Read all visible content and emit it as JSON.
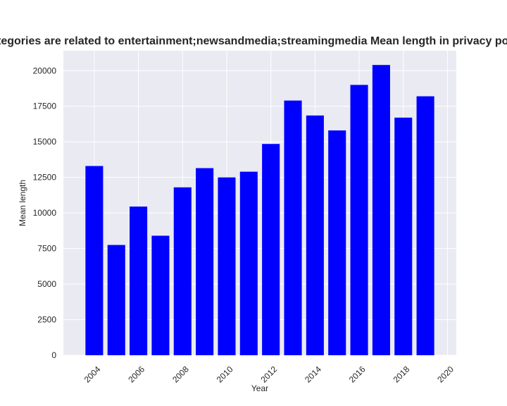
{
  "chart_data": {
    "type": "bar",
    "title": "Categories are related to entertainment;newsandmedia;streamingmedia Mean length in privacy policies",
    "xlabel": "Year",
    "ylabel": "Mean length",
    "categories": [
      "2004",
      "2005",
      "2006",
      "2007",
      "2008",
      "2009",
      "2010",
      "2011",
      "2012",
      "2013",
      "2014",
      "2015",
      "2016",
      "2017",
      "2018",
      "2019"
    ],
    "x": [
      2004,
      2005,
      2006,
      2007,
      2008,
      2009,
      2010,
      2011,
      2012,
      2013,
      2014,
      2015,
      2016,
      2017,
      2018,
      2019
    ],
    "values": [
      13300,
      7750,
      10450,
      8400,
      11800,
      13150,
      12500,
      12900,
      14850,
      17900,
      16850,
      15800,
      19000,
      20400,
      16700,
      18200
    ],
    "xlim": [
      2002.6,
      2020.4
    ],
    "ylim": [
      0,
      21400
    ],
    "xticks": [
      2004,
      2006,
      2008,
      2010,
      2012,
      2014,
      2016,
      2018,
      2020
    ],
    "yticks": [
      0,
      2500,
      5000,
      7500,
      10000,
      12500,
      15000,
      17500,
      20000
    ],
    "bar_color": "#0000ff",
    "background_color": "#eaeaf2",
    "grid": true
  }
}
